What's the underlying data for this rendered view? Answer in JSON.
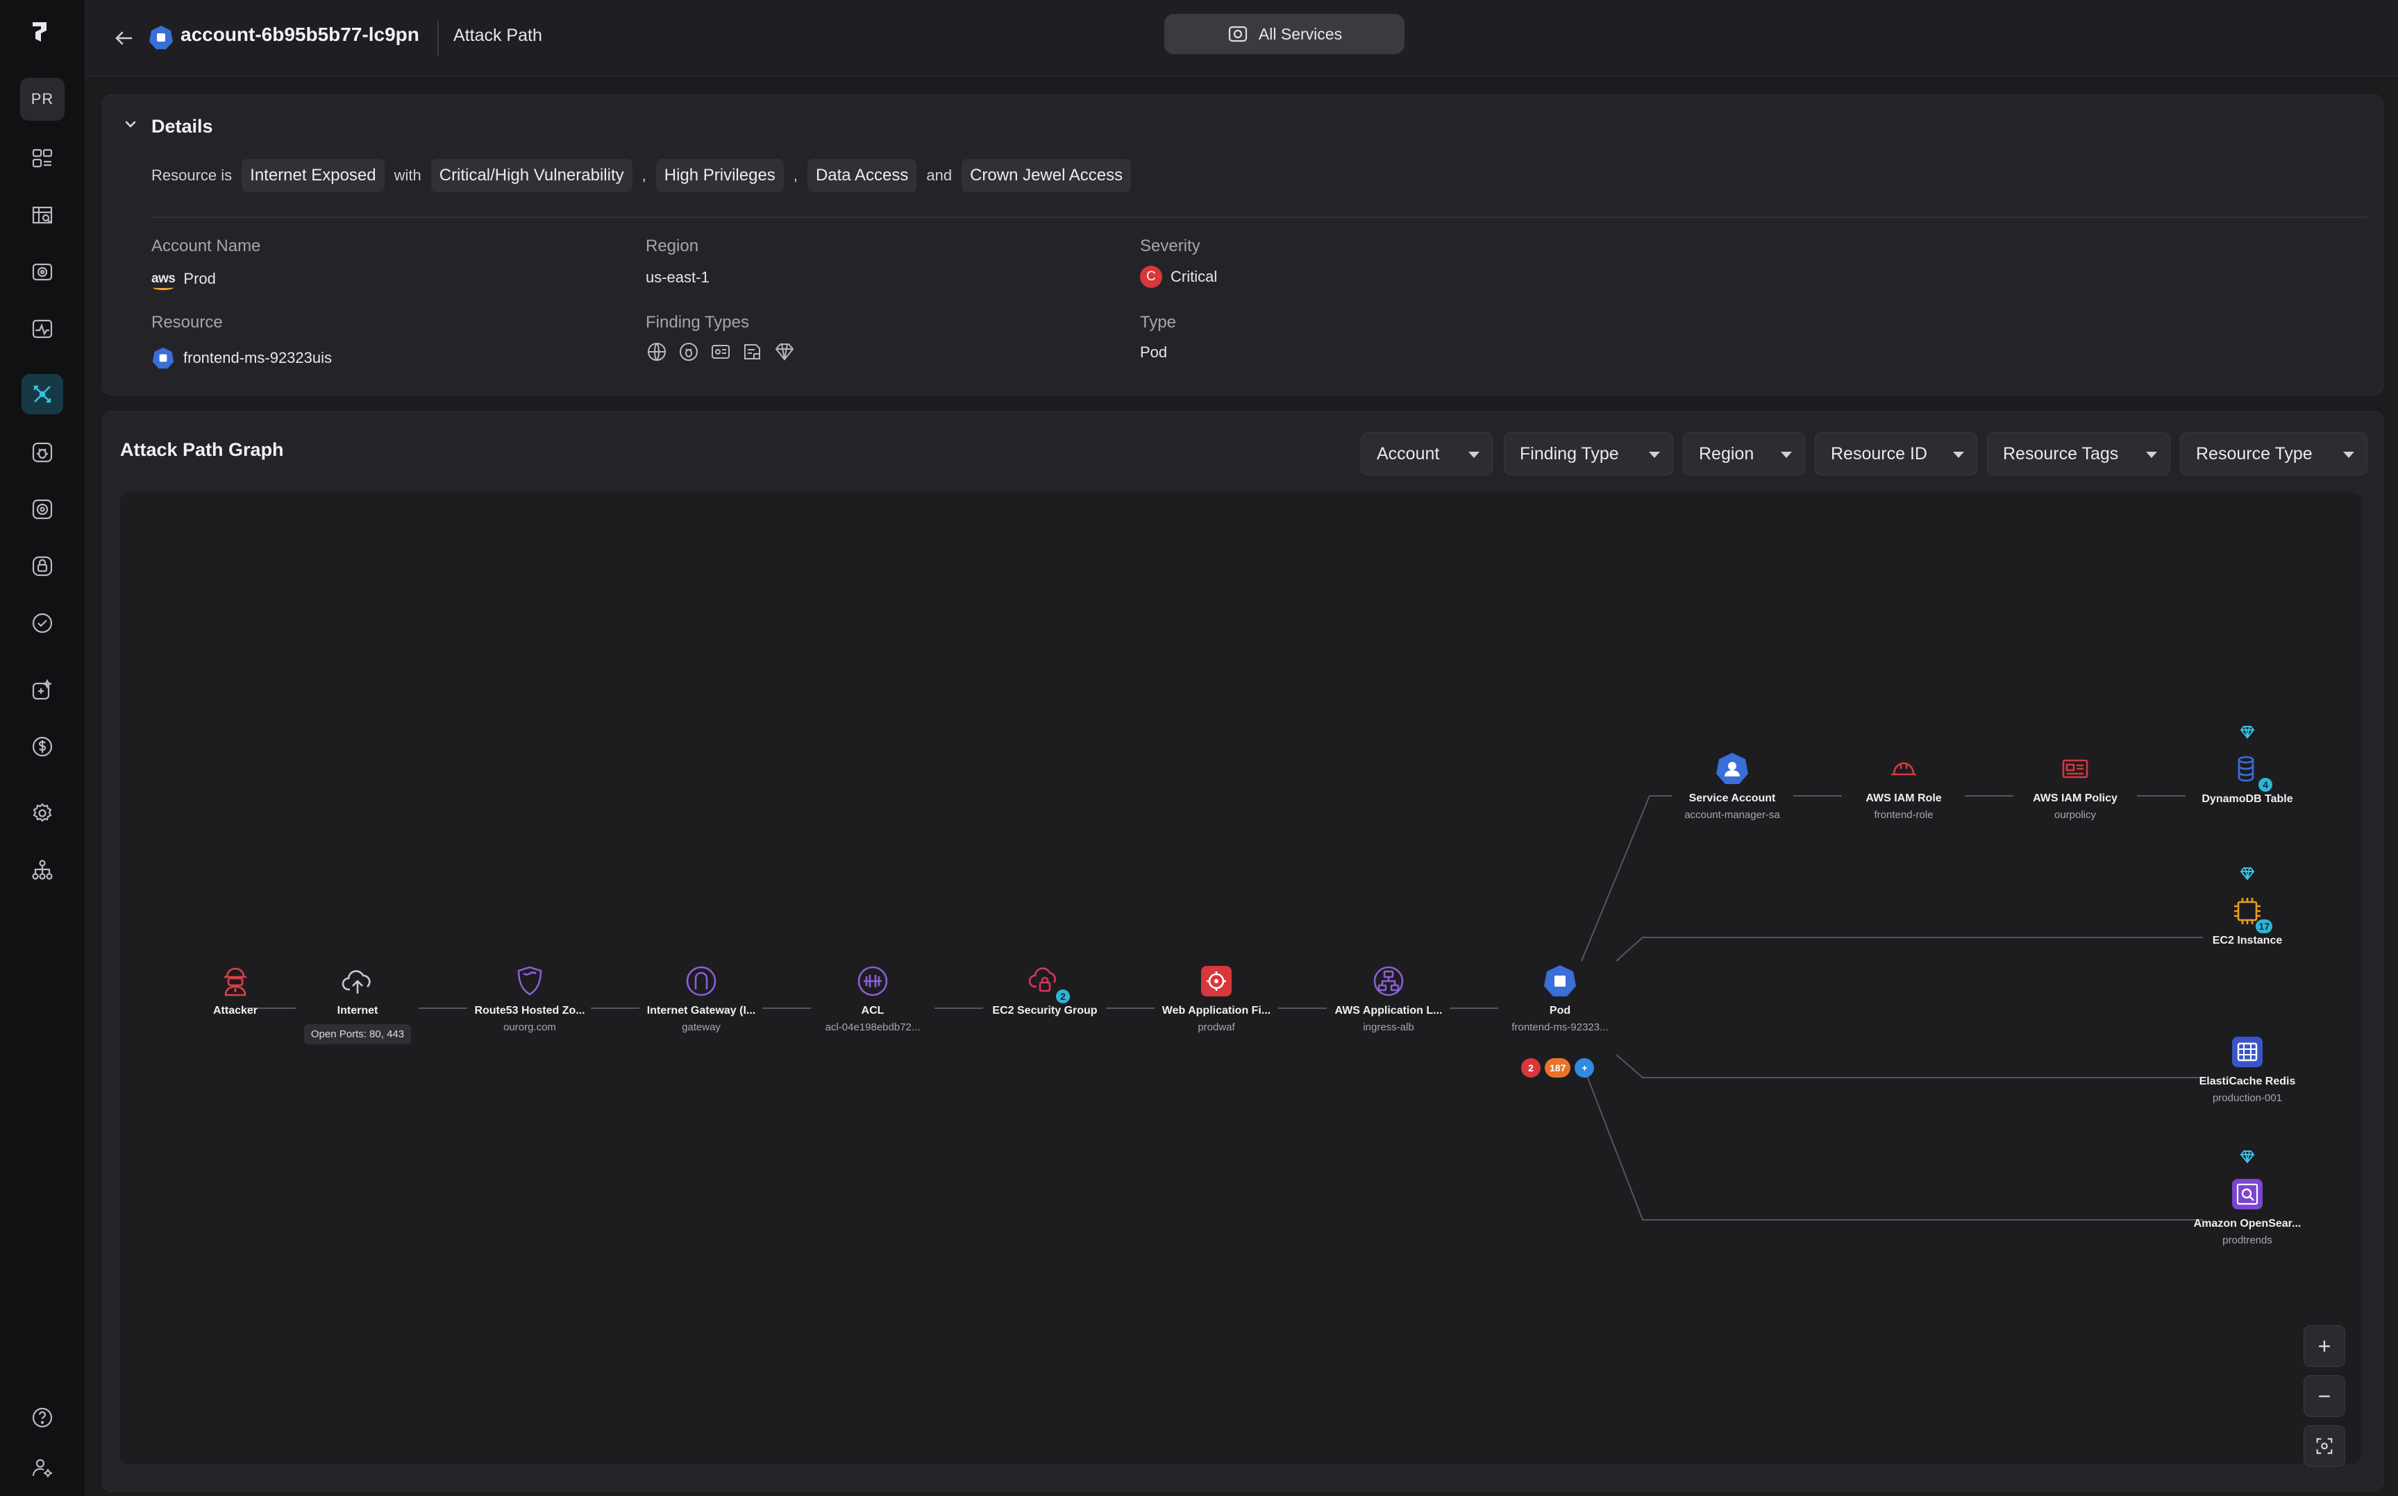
{
  "sidebar": {
    "avatar": "PR",
    "items": [
      "dashboard-icon",
      "inventory-map-icon",
      "camera-icon",
      "activity-icon",
      "attack-path-icon",
      "bug-icon",
      "target-icon",
      "lock-icon",
      "check-circle-icon",
      "shield-plus-icon",
      "dollar-icon",
      "settings-icon",
      "org-tree-icon"
    ],
    "active_index": 4,
    "bottom": [
      "help-icon",
      "user-settings-icon"
    ]
  },
  "topbar": {
    "account": "account-6b95b5b77-lc9pn",
    "crumb": "Attack Path",
    "services_button": "All Services"
  },
  "details": {
    "title": "Details",
    "sentence": {
      "prefix": "Resource is",
      "chip1": "Internet Exposed",
      "with": "with",
      "chip2": "Critical/High Vulnerability",
      "comma1": ",",
      "chip3": "High Privileges",
      "comma2": ",",
      "chip4": "Data Access",
      "and": "and",
      "chip5": "Crown Jewel Access"
    },
    "labels": {
      "account_name": "Account Name",
      "region": "Region",
      "severity": "Severity",
      "resource": "Resource",
      "finding_types": "Finding Types",
      "type": "Type"
    },
    "values": {
      "account_provider": "aws",
      "account_name": "Prod",
      "region": "us-east-1",
      "severity_letter": "C",
      "severity": "Critical",
      "resource": "frontend-ms-92323uis",
      "type": "Pod"
    }
  },
  "graph": {
    "title": "Attack Path Graph",
    "filters": [
      "Account",
      "Finding Type",
      "Region",
      "Resource ID",
      "Resource Tags",
      "Resource Type"
    ],
    "nodes": {
      "attacker": {
        "name": "Attacker"
      },
      "internet": {
        "name": "Internet",
        "ports": "Open Ports: 80, 443"
      },
      "route53": {
        "name": "Route53 Hosted Zo...",
        "sub": "ourorg.com"
      },
      "igw": {
        "name": "Internet Gateway (I...",
        "sub": "gateway"
      },
      "acl": {
        "name": "ACL",
        "sub": "acl-04e198ebdb72..."
      },
      "sg": {
        "name": "EC2 Security Group",
        "count": "2"
      },
      "waf": {
        "name": "Web Application Fi...",
        "sub": "prodwaf"
      },
      "alb": {
        "name": "AWS Application L...",
        "sub": "ingress-alb"
      },
      "pod": {
        "name": "Pod",
        "sub": "frontend-ms-92323...",
        "badge_critical": "2",
        "badge_high": "187",
        "badge_more": "+"
      },
      "sa": {
        "name": "Service Account",
        "sub": "account-manager-sa"
      },
      "role": {
        "name": "AWS IAM Role",
        "sub": "frontend-role"
      },
      "policy": {
        "name": "AWS IAM Policy",
        "sub": "ourpolicy"
      },
      "dynamo": {
        "name": "DynamoDB Table",
        "count": "4"
      },
      "ec2": {
        "name": "EC2 Instance",
        "count": "17"
      },
      "redis": {
        "name": "ElastiCache Redis",
        "sub": "production-001"
      },
      "opensearch": {
        "name": "Amazon OpenSear...",
        "sub": "prodtrends"
      }
    },
    "zoom": {
      "in": "+",
      "out": "−"
    }
  },
  "colors": {
    "accent": "#2fb4d8",
    "critical": "#d8373b",
    "high": "#e8742a",
    "info": "#2f8be0"
  }
}
